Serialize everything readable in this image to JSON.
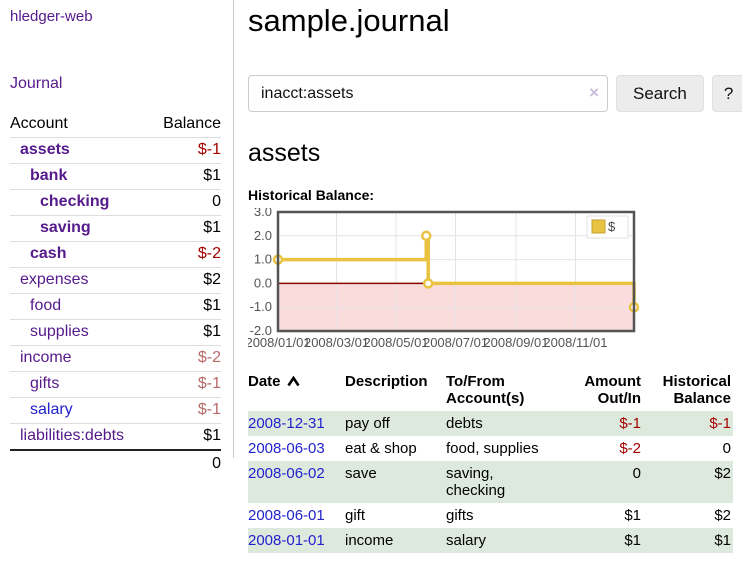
{
  "colors": {
    "link_visited_purple": "#551a8b",
    "link_blue": "#2222cc",
    "negative_strong": "#a40000",
    "negative_muted": "#b86a6a",
    "row_green": "#dee9de",
    "chart_gold": "#e8c240",
    "chart_negative_fill": "#fbdcdc",
    "chart_zero_line": "#8b0000"
  },
  "sidebar": {
    "app_title": "hledger-web",
    "journal_label": "Journal",
    "accounts_table": {
      "headers": {
        "account": "Account",
        "balance": "Balance"
      },
      "rows": [
        {
          "name": "assets",
          "balance": "$-1"
        },
        {
          "name": "bank",
          "balance": "$1"
        },
        {
          "name": "checking",
          "balance": "0"
        },
        {
          "name": "saving",
          "balance": "$1"
        },
        {
          "name": "cash",
          "balance": "$-2"
        },
        {
          "name": "expenses",
          "balance": "$2"
        },
        {
          "name": "food",
          "balance": "$1"
        },
        {
          "name": "supplies",
          "balance": "$1"
        },
        {
          "name": "income",
          "balance": "$-2"
        },
        {
          "name": "gifts",
          "balance": "$-1"
        },
        {
          "name": "salary",
          "balance": "$-1"
        },
        {
          "name": "liabilities:debts",
          "balance": "$1"
        }
      ],
      "total": "0"
    }
  },
  "main": {
    "title": "sample.journal",
    "search": {
      "value": "inacct:assets",
      "clear_icon": "×",
      "button_label": "Search",
      "help_label": "?"
    },
    "account_heading": "assets",
    "chart_label": "Historical Balance:",
    "register_table": {
      "headers": {
        "date": "Date",
        "description": "Description",
        "accounts": "To/From Account(s)",
        "amount": "Amount Out/In",
        "balance": "Historical Balance"
      },
      "rows": [
        {
          "date": "2008-12-31",
          "description": "pay off",
          "accounts": "debts",
          "amount": "$-1",
          "balance": "$-1"
        },
        {
          "date": "2008-06-03",
          "description": "eat & shop",
          "accounts": "food, supplies",
          "amount": "$-2",
          "balance": "0"
        },
        {
          "date": "2008-06-02",
          "description": "save",
          "accounts": "saving, checking",
          "amount": "0",
          "balance": "$2"
        },
        {
          "date": "2008-06-01",
          "description": "gift",
          "accounts": "gifts",
          "amount": "$1",
          "balance": "$2"
        },
        {
          "date": "2008-01-01",
          "description": "income",
          "accounts": "salary",
          "amount": "$1",
          "balance": "$1"
        }
      ]
    }
  },
  "chart_data": {
    "type": "line",
    "step": true,
    "title": "Historical Balance",
    "series": [
      {
        "name": "$",
        "color": "#e8c240",
        "points": [
          {
            "date": "2008-01-01",
            "value": 1
          },
          {
            "date": "2008-06-01",
            "value": 2
          },
          {
            "date": "2008-06-03",
            "value": 0
          },
          {
            "date": "2008-12-31",
            "value": -1
          }
        ]
      }
    ],
    "ylim": [
      -2,
      3
    ],
    "yticks": [
      3,
      2,
      1,
      0,
      -1,
      -2
    ],
    "ytick_labels": [
      "3.0",
      "2.0",
      "1.0",
      "0.0",
      "-1.0",
      "-2.0"
    ],
    "xlim": [
      "2008-01-01",
      "2008-12-31"
    ],
    "xticks": [
      "2008-01-01",
      "2008-03-01",
      "2008-05-01",
      "2008-07-01",
      "2008-09-01",
      "2008-11-01"
    ],
    "xtick_labels": [
      "2008/01/01",
      "2008/03/01",
      "2008/05/01",
      "2008/07/01",
      "2008/09/01",
      "2008/11/01"
    ],
    "grid": true,
    "negative_region_fill": "#fbdcdc",
    "zero_line_color": "#8b0000",
    "legend": {
      "position": "top-right",
      "label": "$"
    }
  }
}
